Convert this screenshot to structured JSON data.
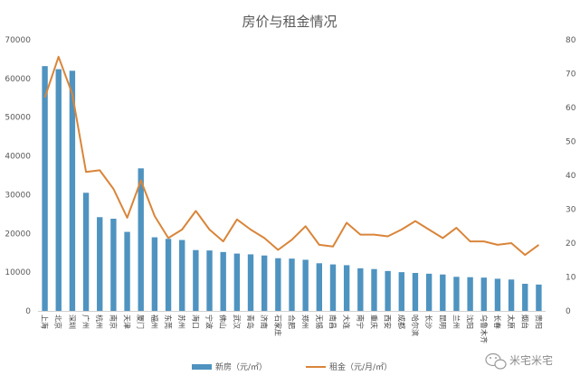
{
  "chart_data": {
    "type": "bar",
    "title": "房价与租金情况",
    "categories": [
      "上海",
      "北京",
      "深圳",
      "广州",
      "杭州",
      "南京",
      "天津",
      "厦门",
      "福州",
      "东莞",
      "苏州",
      "海口",
      "宁波",
      "佛山",
      "武汉",
      "青岛",
      "济南",
      "石家庄",
      "合肥",
      "郑州",
      "无锡",
      "南昌",
      "大连",
      "南宁",
      "重庆",
      "西安",
      "成都",
      "哈尔滨",
      "长沙",
      "昆明",
      "兰州",
      "沈阳",
      "乌鲁木齐",
      "长春",
      "太原",
      "烟台",
      "贵阳"
    ],
    "series": [
      {
        "name": "新房（元/㎡）",
        "type": "bar",
        "axis": "left",
        "color": "#4f93c0",
        "values": [
          63200,
          62400,
          62000,
          30500,
          24200,
          23800,
          20400,
          36800,
          19000,
          18600,
          18300,
          15700,
          15600,
          15200,
          14800,
          14600,
          14300,
          13600,
          13500,
          13200,
          12300,
          12000,
          11800,
          11000,
          10800,
          10300,
          10000,
          9800,
          9600,
          9400,
          8800,
          8700,
          8600,
          8300,
          8100,
          7000,
          6800
        ]
      },
      {
        "name": "租金（元/月/㎡）",
        "type": "line",
        "axis": "right",
        "color": "#d9853a",
        "values": [
          63,
          75,
          64,
          41,
          41.5,
          36,
          27.5,
          38.5,
          28,
          21.5,
          24,
          29.5,
          24,
          20.5,
          27,
          24,
          21.5,
          18,
          21,
          25,
          19.5,
          19,
          26,
          22.5,
          22.5,
          22,
          24,
          26.5,
          24,
          21.5,
          24.5,
          20.5,
          20.5,
          19.5,
          20,
          16.5,
          19.5
        ]
      }
    ],
    "y_left": {
      "min": 0,
      "max": 70000,
      "ticks": [
        0,
        10000,
        20000,
        30000,
        40000,
        50000,
        60000,
        70000
      ]
    },
    "y_right": {
      "min": 0,
      "max": 80,
      "ticks": [
        0,
        10,
        20,
        30,
        40,
        50,
        60,
        70,
        80
      ]
    },
    "grid": false,
    "legend_position": "bottom"
  },
  "watermark": {
    "text": "米宅米宅",
    "icon": "wechat-icon"
  }
}
